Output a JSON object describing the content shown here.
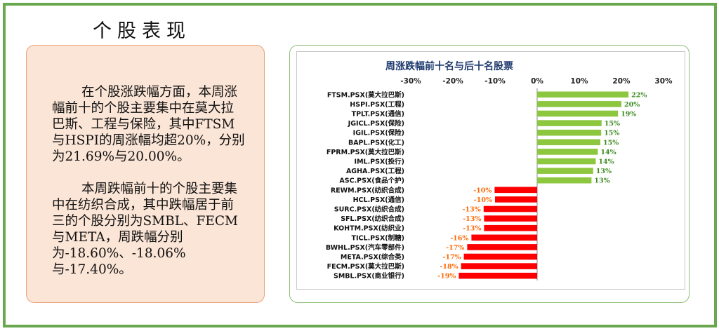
{
  "page": {
    "title": "个股表现",
    "paragraphs": [
      "在个股涨跌幅方面，本周涨幅前十的个股主要集中在莫大拉巴斯、工程与保险，其中FTSM与HSPI的周涨幅均超20%，分别为21.69%与20.00%。",
      "本周跌幅前十的个股主要集中在纺织合成，其中跌幅居于前三的个股分别为SMBL、FECM与META，周跌幅分别为-18.60%、-18.06%与-17.40%。"
    ]
  },
  "colors": {
    "frame": "#6aa84f",
    "text_box_bg": "#fbe5d6",
    "positive_bar": "#8dc63f",
    "negative_bar": "#ff0000",
    "positive_label": "#3a8a1f",
    "negative_label": "#ff6600",
    "chart_title": "#1f3a6e"
  },
  "chart_data": {
    "type": "bar",
    "orientation": "horizontal",
    "title": "周涨跌幅前十名与后十名股票",
    "xlim": [
      -30,
      30
    ],
    "x_ticks": [
      "-30%",
      "-20%",
      "-10%",
      "0%",
      "10%",
      "20%",
      "30%"
    ],
    "x_tick_values": [
      -30,
      -20,
      -10,
      0,
      10,
      20,
      30
    ],
    "axis_position": "top",
    "categories": [
      "FTSM.PSX(莫大拉巴斯)",
      "HSPI.PSX(工程)",
      "TPLT.PSX(通信)",
      "JGICL.PSX(保险)",
      "IGIL.PSX(保险)",
      "BAPL.PSX(化工)",
      "FPRM.PSX(莫大拉巴斯)",
      "IML.PSX(投行)",
      "AGHA.PSX(工程)",
      "ASC.PSX(食品个护)",
      "REWM.PSX(纺织合成)",
      "HCL.PSX(通信)",
      "SURC.PSX(纺织合成)",
      "SFL.PSX(纺织合成)",
      "KOHTM.PSX(纺织业)",
      "TICL.PSX(制糖)",
      "BWHL.PSX(汽车零部件)",
      "META.PSX(综合类)",
      "FECM.PSX(莫大拉巴斯)",
      "SMBL.PSX(商业银行)"
    ],
    "values": [
      21.69,
      20.0,
      19.2,
      15.3,
      15.2,
      15.0,
      14.4,
      13.9,
      13.3,
      12.9,
      -10.1,
      -10.0,
      -12.7,
      -12.6,
      -12.6,
      -15.6,
      -16.6,
      -17.4,
      -18.06,
      -18.6
    ],
    "data_labels": [
      "22%",
      "20%",
      "19%",
      "15%",
      "15%",
      "15%",
      "14%",
      "14%",
      "13%",
      "13%",
      "-10%",
      "-10%",
      "-13%",
      "-13%",
      "-13%",
      "-16%",
      "-17%",
      "-17%",
      "-18%",
      "-19%"
    ],
    "grid": false,
    "legend": "none"
  }
}
